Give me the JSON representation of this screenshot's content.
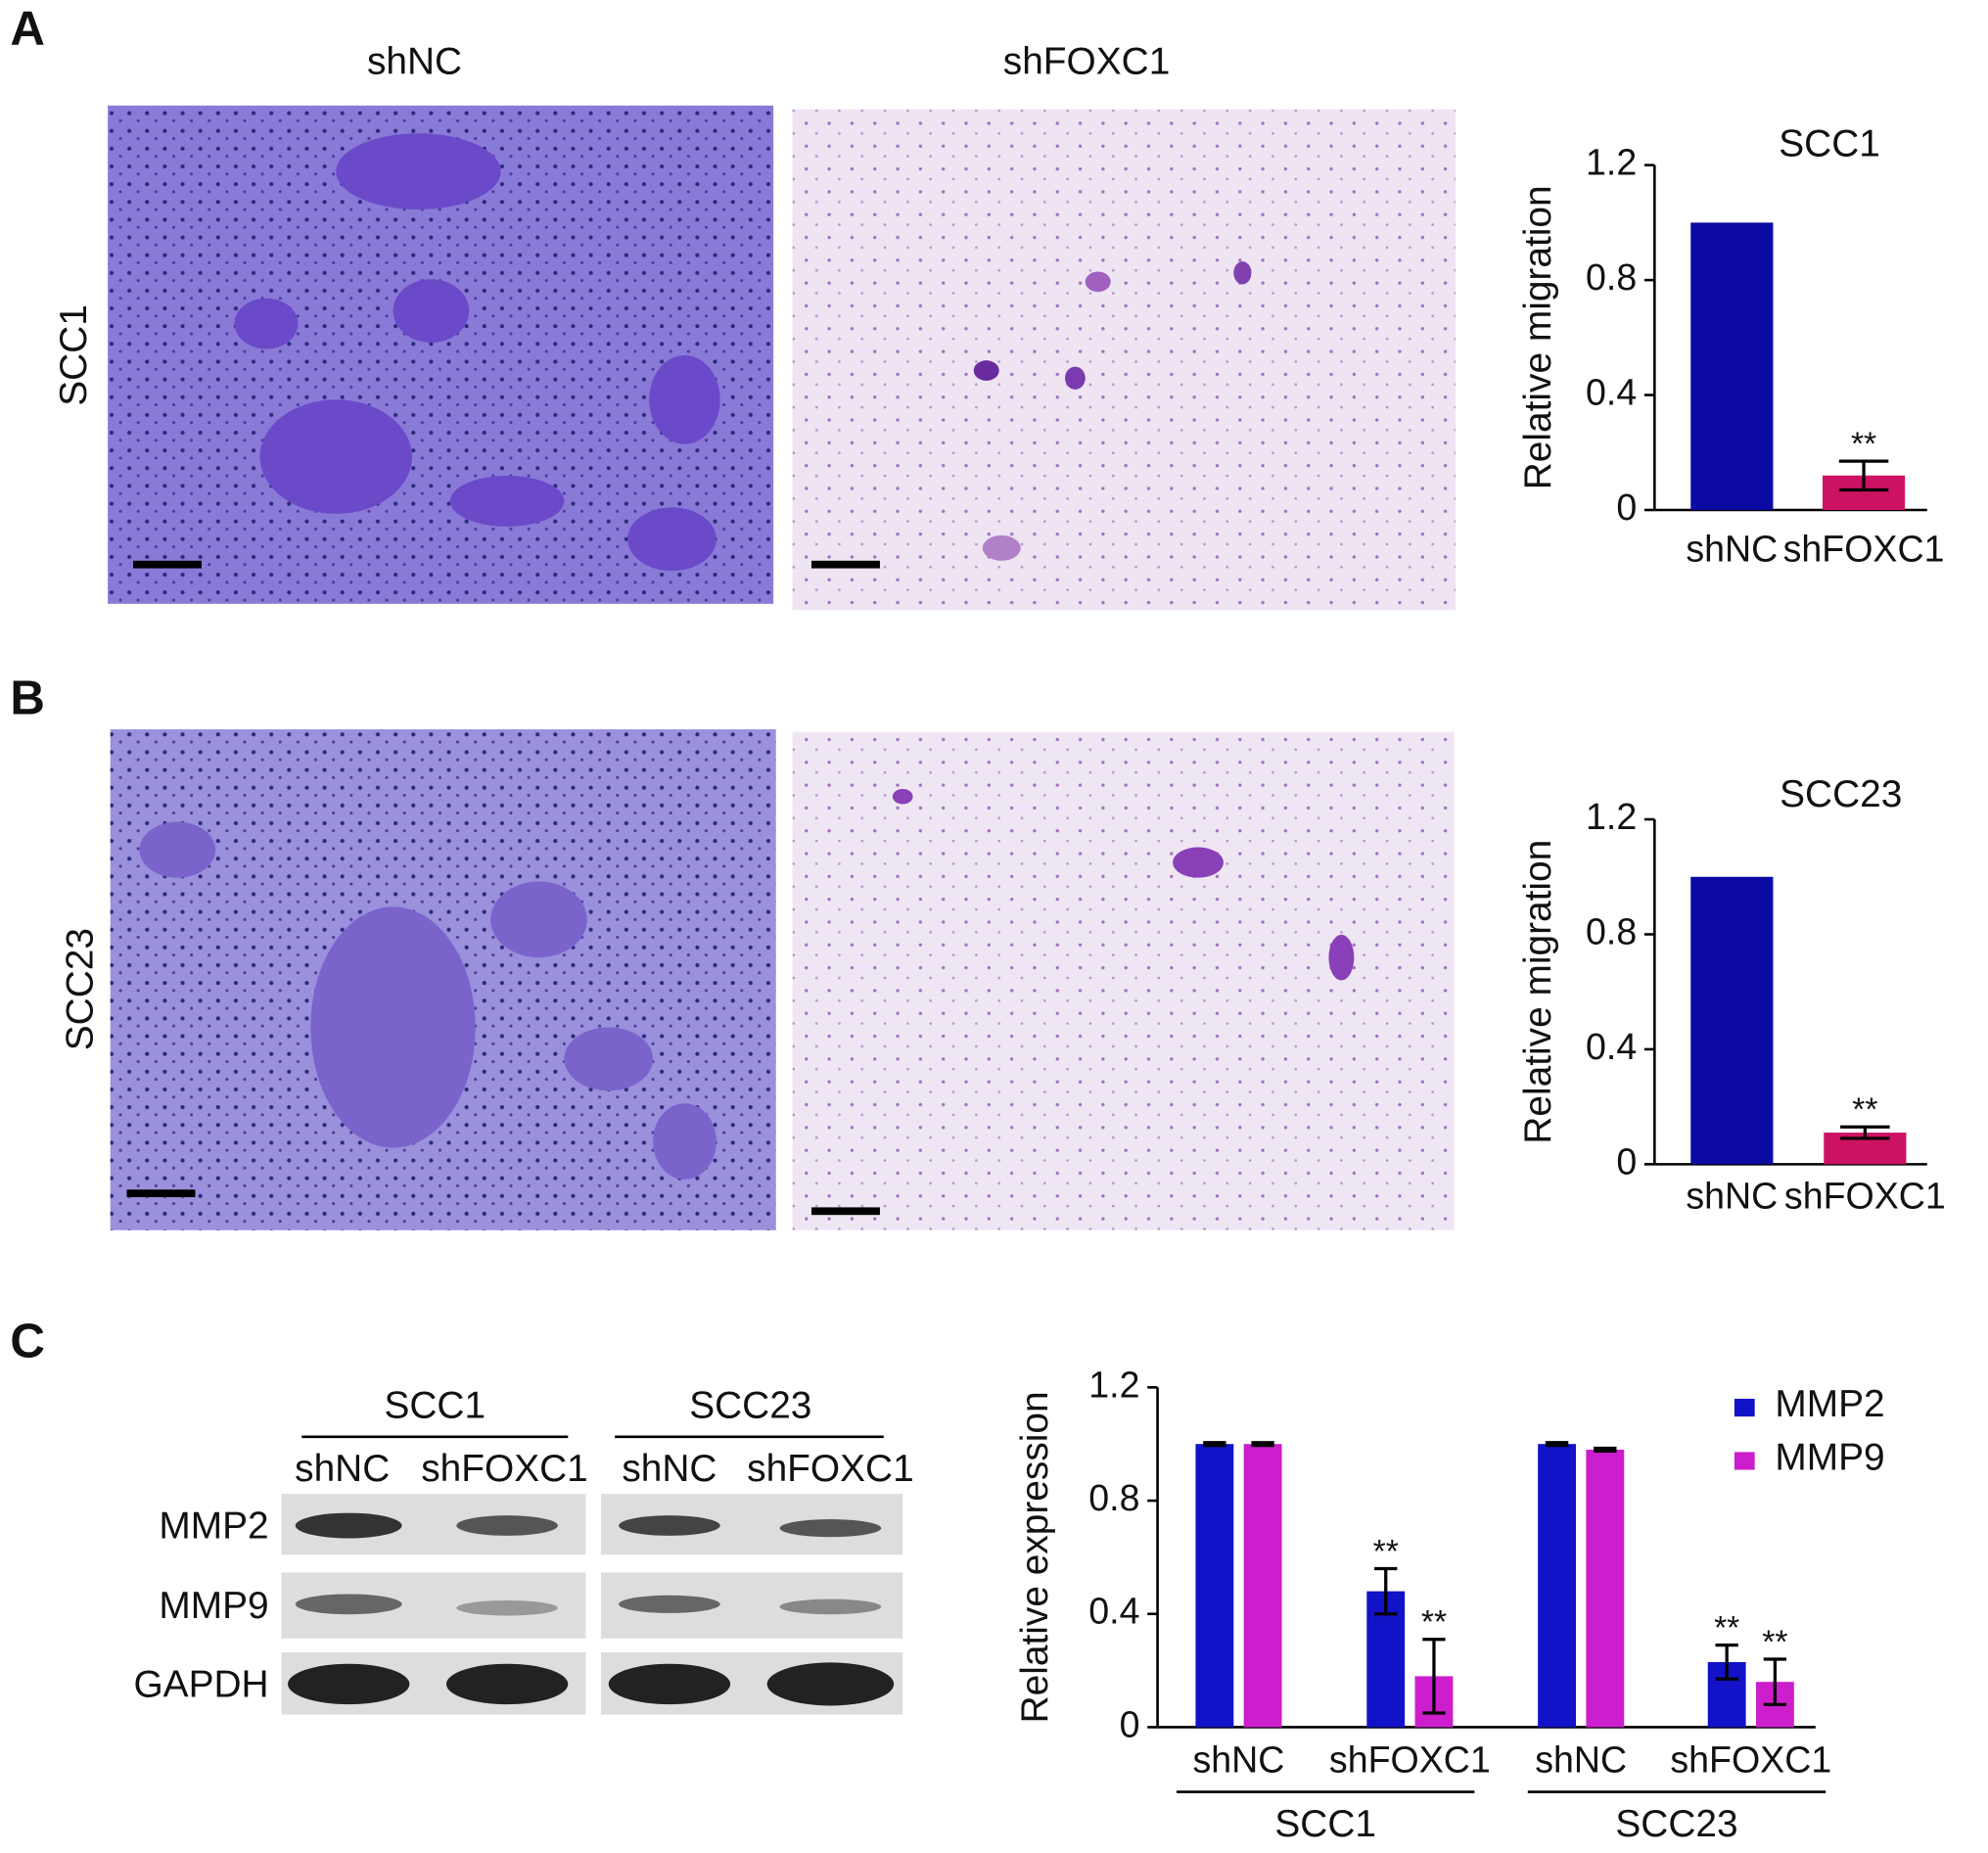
{
  "panels": [
    "A",
    "B",
    "C"
  ],
  "microscopy": {
    "column_labels": [
      "shNC",
      "shFOXC1"
    ],
    "row_labels": [
      "SCC1",
      "SCC23"
    ]
  },
  "western_blot": {
    "groups": [
      "SCC1",
      "SCC23"
    ],
    "lanes": [
      "shNC",
      "shFOXC1",
      "shNC",
      "shFOXC1"
    ],
    "proteins": [
      "MMP2",
      "MMP9",
      "GAPDH"
    ]
  },
  "chart_data": [
    {
      "type": "bar",
      "title": "SCC1",
      "y_label": "Relative migration",
      "categories": [
        "shNC",
        "shFOXC1"
      ],
      "values": [
        1.0,
        0.12
      ],
      "errors": [
        null,
        0.05
      ],
      "significance": [
        null,
        "**"
      ],
      "colors": [
        "#0b0ba3",
        "#cc1262"
      ],
      "ylim": [
        0,
        1.2
      ],
      "yticks": [
        0,
        0.4,
        0.8,
        1.2
      ]
    },
    {
      "type": "bar",
      "title": "SCC23",
      "y_label": "Relative migration",
      "categories": [
        "shNC",
        "shFOXC1"
      ],
      "values": [
        1.0,
        0.11
      ],
      "errors": [
        null,
        0.02
      ],
      "significance": [
        null,
        "**"
      ],
      "colors": [
        "#0b0ba3",
        "#cc1262"
      ],
      "ylim": [
        0,
        1.2
      ],
      "yticks": [
        0,
        0.4,
        0.8,
        1.2
      ]
    },
    {
      "type": "grouped-bar",
      "y_label": "Relative expression",
      "categories": [
        "shNC",
        "shFOXC1",
        "shNC",
        "shFOXC1"
      ],
      "group_labels": [
        "SCC1",
        "SCC23"
      ],
      "series": [
        {
          "name": "MMP2",
          "color": "#1212c8",
          "values": [
            1.0,
            0.48,
            1.0,
            0.23
          ],
          "errors": [
            0.005,
            0.08,
            0.005,
            0.06
          ],
          "significance": [
            null,
            "**",
            null,
            "**"
          ]
        },
        {
          "name": "MMP9",
          "color": "#cc1ecc",
          "values": [
            1.0,
            0.18,
            0.98,
            0.16
          ],
          "errors": [
            0.005,
            0.13,
            0.005,
            0.08
          ],
          "significance": [
            null,
            "**",
            null,
            "**"
          ]
        }
      ],
      "legend": "upper right",
      "ylim": [
        0,
        1.2
      ],
      "yticks": [
        0,
        0.4,
        0.8,
        1.2
      ]
    }
  ]
}
